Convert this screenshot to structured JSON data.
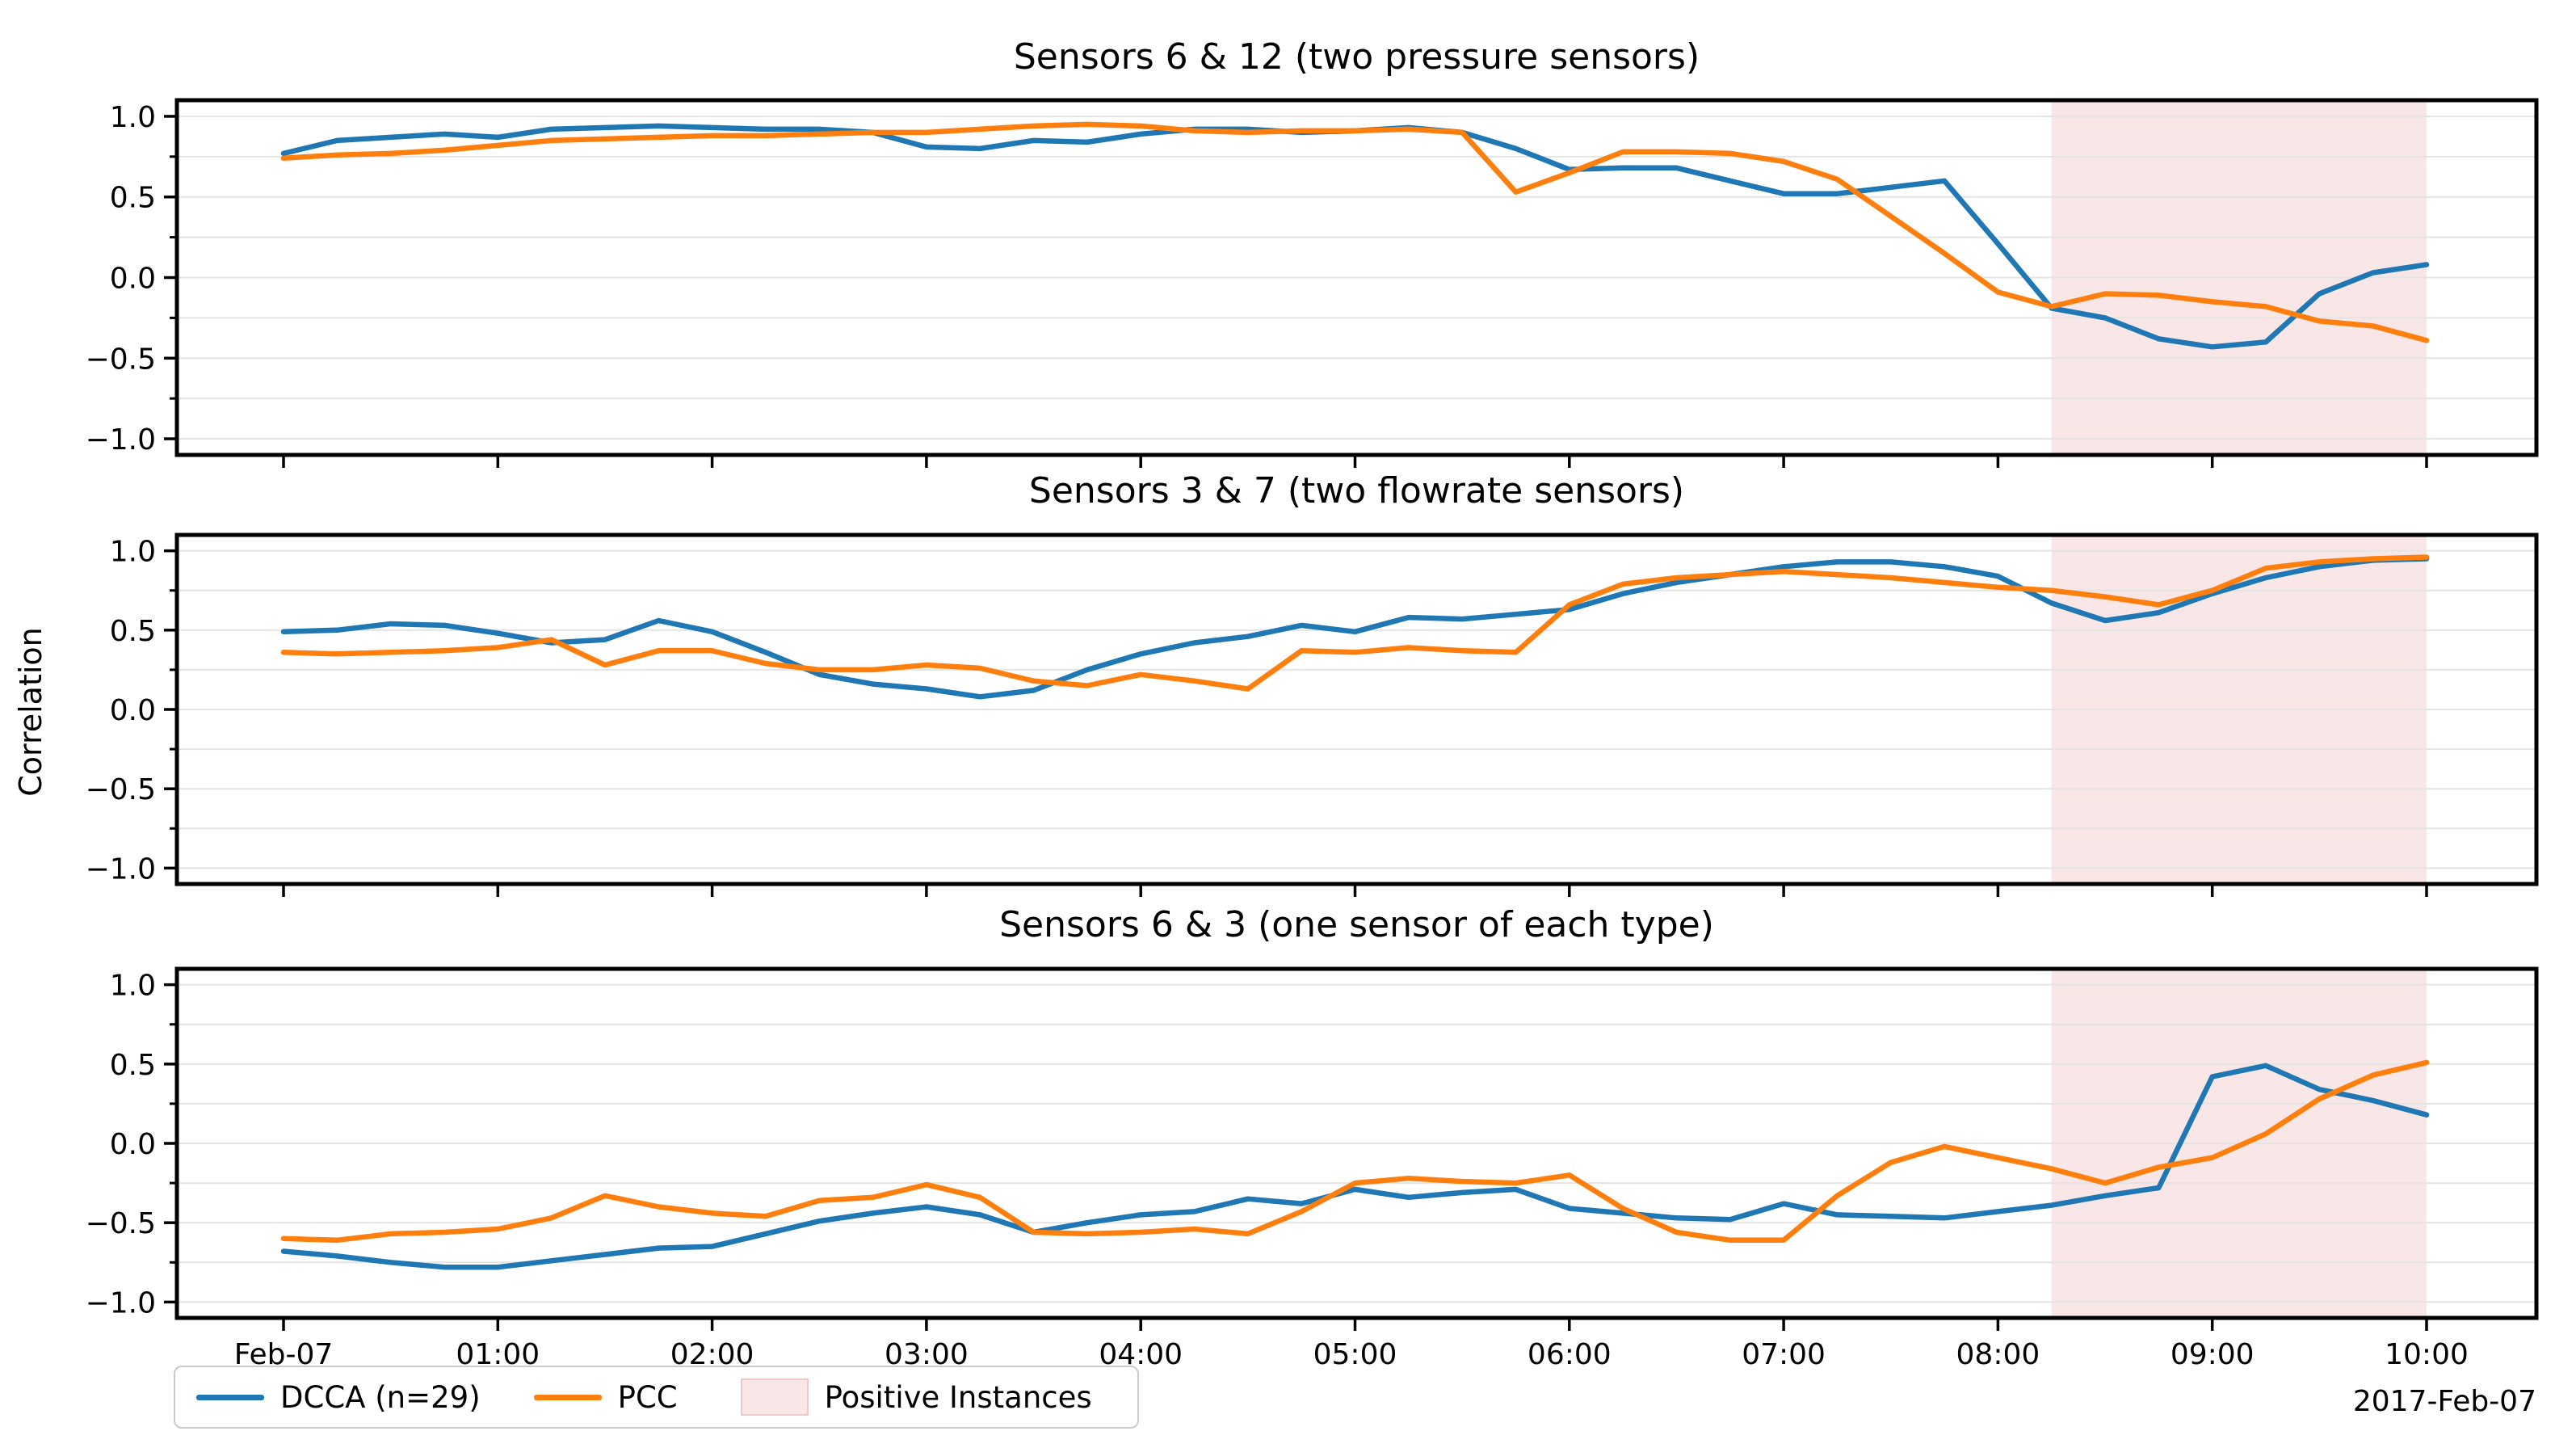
{
  "figure": {
    "ylabel": "Correlation",
    "date_label": "2017-Feb-07",
    "legend": {
      "dcca": "DCCA (n=29)",
      "pcc": "PCC",
      "band": "Positive Instances"
    },
    "colors": {
      "dcca": "#1f77b4",
      "pcc": "#ff7f0e",
      "band_fill": "#f9e7e7",
      "grid": "#e4e4e4",
      "frame": "#000000"
    }
  },
  "chart_data": {
    "type": "line",
    "x_unit": "hours since 2017-02-07 00:00 (samples every 15 min)",
    "x_hours": [
      0,
      0.25,
      0.5,
      0.75,
      1,
      1.25,
      1.5,
      1.75,
      2,
      2.25,
      2.5,
      2.75,
      3,
      3.25,
      3.5,
      3.75,
      4,
      4.25,
      4.5,
      4.75,
      5,
      5.25,
      5.5,
      5.75,
      6,
      6.25,
      6.5,
      6.75,
      7,
      7.25,
      7.5,
      7.75,
      8,
      8.25,
      8.5,
      8.75,
      9,
      9.25,
      9.5,
      9.75,
      10
    ],
    "x_tick_hours": [
      0,
      1,
      2,
      3,
      4,
      5,
      6,
      7,
      8,
      9,
      10
    ],
    "x_tick_labels": [
      "Feb-07",
      "01:00",
      "02:00",
      "03:00",
      "04:00",
      "05:00",
      "06:00",
      "07:00",
      "08:00",
      "09:00",
      "10:00"
    ],
    "xlim_hours": [
      -0.5,
      10.5
    ],
    "ylim": [
      -1.1,
      1.1
    ],
    "yticks": [
      1.0,
      0.5,
      0.0,
      -0.5,
      -1.0
    ],
    "ytick_labels": [
      "1.0",
      "0.5",
      "0.0",
      "−0.5",
      "−1.0"
    ],
    "grid": "horizontal, every 0.25",
    "legend_position": "lower left, outside axes",
    "highlight_band": {
      "label": "Positive Instances",
      "x_start_hours": 8.25,
      "x_end_hours": 10
    },
    "panels": [
      {
        "title": "Sensors 6 & 12 (two pressure sensors)",
        "series": [
          {
            "name": "DCCA (n=29)",
            "values": [
              0.77,
              0.85,
              0.87,
              0.89,
              0.87,
              0.92,
              0.93,
              0.94,
              0.93,
              0.92,
              0.92,
              0.9,
              0.81,
              0.8,
              0.85,
              0.84,
              0.89,
              0.92,
              0.92,
              0.9,
              0.91,
              0.93,
              0.9,
              0.8,
              0.67,
              0.68,
              0.68,
              0.6,
              0.52,
              0.52,
              0.56,
              0.6,
              0.21,
              -0.19,
              -0.25,
              -0.38,
              -0.43,
              -0.4,
              -0.1,
              0.03,
              0.08
            ]
          },
          {
            "name": "PCC",
            "values": [
              0.74,
              0.76,
              0.77,
              0.79,
              0.82,
              0.85,
              0.86,
              0.87,
              0.88,
              0.88,
              0.89,
              0.9,
              0.9,
              0.92,
              0.94,
              0.95,
              0.94,
              0.91,
              0.9,
              0.91,
              0.91,
              0.92,
              0.9,
              0.53,
              0.65,
              0.78,
              0.78,
              0.77,
              0.72,
              0.61,
              0.38,
              0.15,
              -0.09,
              -0.18,
              -0.1,
              -0.11,
              -0.15,
              -0.18,
              -0.27,
              -0.3,
              -0.39
            ]
          }
        ]
      },
      {
        "title": "Sensors 3 & 7 (two flowrate sensors)",
        "series": [
          {
            "name": "DCCA (n=29)",
            "values": [
              0.49,
              0.5,
              0.54,
              0.53,
              0.48,
              0.42,
              0.44,
              0.56,
              0.49,
              0.36,
              0.22,
              0.16,
              0.13,
              0.08,
              0.12,
              0.25,
              0.35,
              0.42,
              0.46,
              0.53,
              0.49,
              0.58,
              0.57,
              0.6,
              0.63,
              0.73,
              0.8,
              0.85,
              0.9,
              0.93,
              0.93,
              0.9,
              0.84,
              0.67,
              0.56,
              0.61,
              0.73,
              0.83,
              0.9,
              0.94,
              0.95
            ]
          },
          {
            "name": "PCC",
            "values": [
              0.36,
              0.35,
              0.36,
              0.37,
              0.39,
              0.44,
              0.28,
              0.37,
              0.37,
              0.29,
              0.25,
              0.25,
              0.28,
              0.26,
              0.18,
              0.15,
              0.22,
              0.18,
              0.13,
              0.37,
              0.36,
              0.39,
              0.37,
              0.36,
              0.66,
              0.79,
              0.83,
              0.85,
              0.87,
              0.85,
              0.83,
              0.8,
              0.77,
              0.75,
              0.71,
              0.66,
              0.75,
              0.89,
              0.93,
              0.95,
              0.96
            ]
          }
        ]
      },
      {
        "title": "Sensors 6 & 3 (one sensor of each type)",
        "series": [
          {
            "name": "DCCA (n=29)",
            "values": [
              -0.68,
              -0.71,
              -0.75,
              -0.78,
              -0.78,
              -0.74,
              -0.7,
              -0.66,
              -0.65,
              -0.57,
              -0.49,
              -0.44,
              -0.4,
              -0.45,
              -0.56,
              -0.5,
              -0.45,
              -0.43,
              -0.35,
              -0.38,
              -0.29,
              -0.34,
              -0.31,
              -0.29,
              -0.41,
              -0.44,
              -0.47,
              -0.48,
              -0.38,
              -0.45,
              -0.46,
              -0.47,
              -0.43,
              -0.39,
              -0.33,
              -0.28,
              0.42,
              0.49,
              0.34,
              0.27,
              0.18
            ]
          },
          {
            "name": "PCC",
            "values": [
              -0.6,
              -0.61,
              -0.57,
              -0.56,
              -0.54,
              -0.47,
              -0.33,
              -0.4,
              -0.44,
              -0.46,
              -0.36,
              -0.34,
              -0.26,
              -0.34,
              -0.56,
              -0.57,
              -0.56,
              -0.54,
              -0.57,
              -0.43,
              -0.25,
              -0.22,
              -0.24,
              -0.25,
              -0.2,
              -0.41,
              -0.56,
              -0.61,
              -0.61,
              -0.33,
              -0.12,
              -0.02,
              -0.09,
              -0.16,
              -0.25,
              -0.15,
              -0.09,
              0.06,
              0.28,
              0.43,
              0.51
            ]
          }
        ]
      }
    ]
  }
}
